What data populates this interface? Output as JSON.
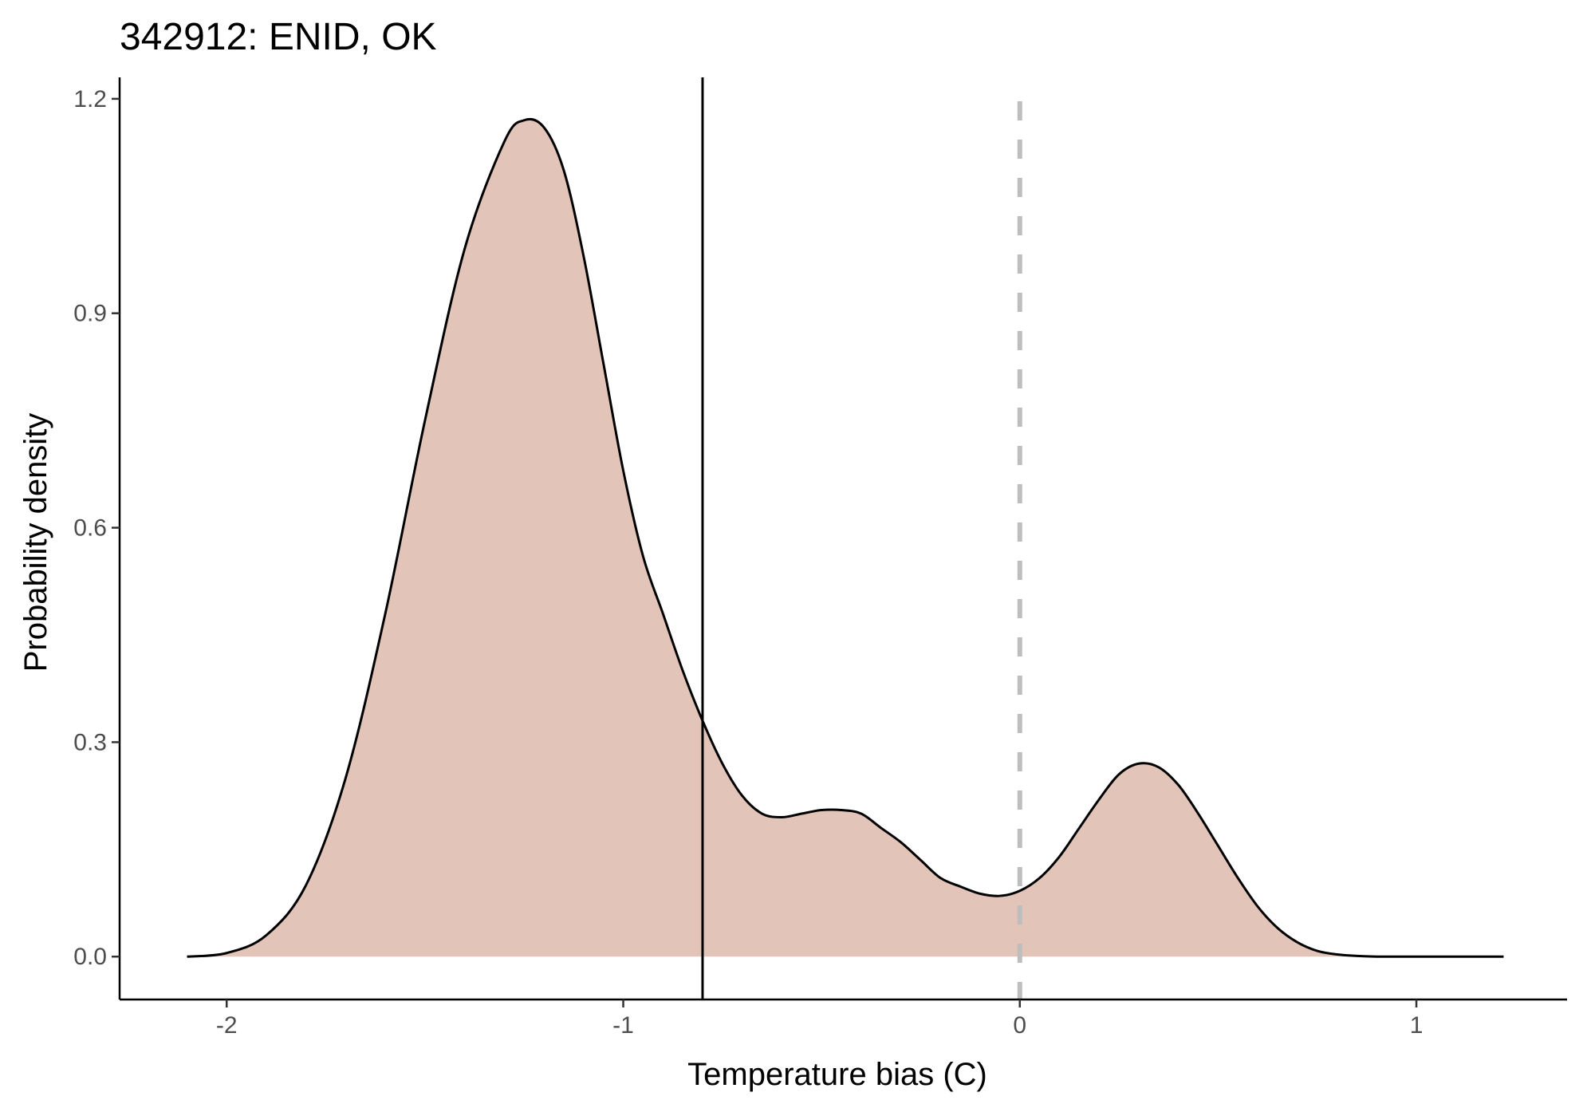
{
  "chart_data": {
    "type": "area",
    "title": "342912: ENID, OK",
    "xlabel": "Temperature bias (C)",
    "ylabel": "Probability density",
    "xlim": [
      -2.27,
      1.38
    ],
    "ylim": [
      -0.06,
      1.23
    ],
    "x_ticks": [
      -2,
      -1,
      0,
      1
    ],
    "x_tick_labels": [
      "-2",
      "-1",
      "0",
      "1"
    ],
    "y_ticks": [
      0.0,
      0.3,
      0.6,
      0.9,
      1.2
    ],
    "y_tick_labels": [
      "0.0",
      "0.3",
      "0.6",
      "0.9",
      "1.2"
    ],
    "grid": false,
    "legend": "none",
    "fill_color": "#e2c4b9",
    "line_color": "#000000",
    "series": [
      {
        "x": [
          -2.1,
          -2.0,
          -1.9,
          -1.8,
          -1.7,
          -1.6,
          -1.5,
          -1.4,
          -1.3,
          -1.25,
          -1.2,
          -1.15,
          -1.1,
          -1.05,
          -1.0,
          -0.95,
          -0.9,
          -0.85,
          -0.8,
          -0.75,
          -0.7,
          -0.65,
          -0.6,
          -0.55,
          -0.5,
          -0.45,
          -0.4,
          -0.35,
          -0.3,
          -0.25,
          -0.2,
          -0.15,
          -0.1,
          -0.05,
          0.0,
          0.05,
          0.1,
          0.15,
          0.2,
          0.25,
          0.3,
          0.35,
          0.4,
          0.45,
          0.5,
          0.55,
          0.6,
          0.65,
          0.7,
          0.75,
          0.8,
          0.85,
          0.9,
          0.95,
          1.0,
          1.05,
          1.1,
          1.15,
          1.22
        ],
        "y": [
          0.0,
          0.005,
          0.03,
          0.1,
          0.25,
          0.48,
          0.75,
          0.99,
          1.14,
          1.17,
          1.16,
          1.1,
          0.98,
          0.83,
          0.68,
          0.56,
          0.48,
          0.4,
          0.33,
          0.27,
          0.225,
          0.2,
          0.195,
          0.2,
          0.205,
          0.205,
          0.2,
          0.18,
          0.16,
          0.135,
          0.11,
          0.098,
          0.088,
          0.085,
          0.092,
          0.11,
          0.14,
          0.18,
          0.22,
          0.255,
          0.27,
          0.265,
          0.24,
          0.2,
          0.155,
          0.11,
          0.07,
          0.04,
          0.02,
          0.008,
          0.003,
          0.001,
          0.0,
          0.0,
          0.0,
          0.0,
          0.0,
          0.0,
          0.0
        ]
      }
    ],
    "reference_lines": [
      {
        "orientation": "vertical",
        "x": -0.8,
        "style": "solid",
        "color": "#000000"
      },
      {
        "orientation": "vertical",
        "x": 0,
        "style": "dashed",
        "color": "#bebebe"
      }
    ]
  }
}
